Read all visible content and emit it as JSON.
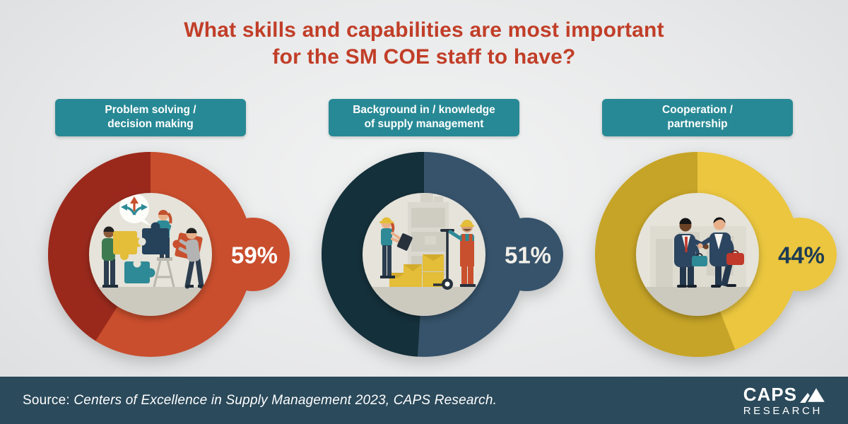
{
  "title": {
    "line1": "What skills and capabilities are most important",
    "line2": "for the SM COE staff to have?",
    "color": "#c13e28"
  },
  "label_box_color": "#278995",
  "inner_circle_color": "#e5e3da",
  "charts": [
    {
      "id": "problem-solving",
      "label_line1": "Problem solving /",
      "label_line2": "decision making",
      "value": 59,
      "value_label": "59%",
      "color_main": "#c94e2d",
      "color_dark": "#9a291c",
      "value_text_color": "#ffffff",
      "icon": "puzzle-teamwork-illustration"
    },
    {
      "id": "supply-knowledge",
      "label_line1": "Background in / knowledge",
      "label_line2": "of supply management",
      "value": 51,
      "value_label": "51%",
      "color_main": "#36536b",
      "color_dark": "#14303a",
      "value_text_color": "#f2efe9",
      "icon": "warehouse-inventory-illustration"
    },
    {
      "id": "cooperation",
      "label_line1": "Cooperation /",
      "label_line2": "partnership",
      "value": 44,
      "value_label": "44%",
      "color_main": "#ebc63e",
      "color_dark": "#c6a427",
      "value_text_color": "#1d3b54",
      "icon": "handshake-partnership-illustration"
    }
  ],
  "chart_data": {
    "type": "pie",
    "title": "What skills and capabilities are most important for the SM COE staff to have?",
    "categories": [
      "Problem solving / decision making",
      "Background in / knowledge of supply management",
      "Cooperation / partnership"
    ],
    "values": [
      59,
      51,
      44
    ],
    "unit": "%",
    "legend_position": "none",
    "layout": "three donut gauges, highlighted arc runs clockwise from 12 o'clock, percent shown in side bubble",
    "source": "Centers of Excellence in Supply Management 2023, CAPS Research."
  },
  "footer": {
    "source_prefix": "Source:",
    "source_text": "Centers of Excellence in Supply Management 2023, CAPS Research.",
    "logo_line1": "CAPS",
    "logo_line2": "RESEARCH",
    "bg_color": "#2b4a5b"
  }
}
